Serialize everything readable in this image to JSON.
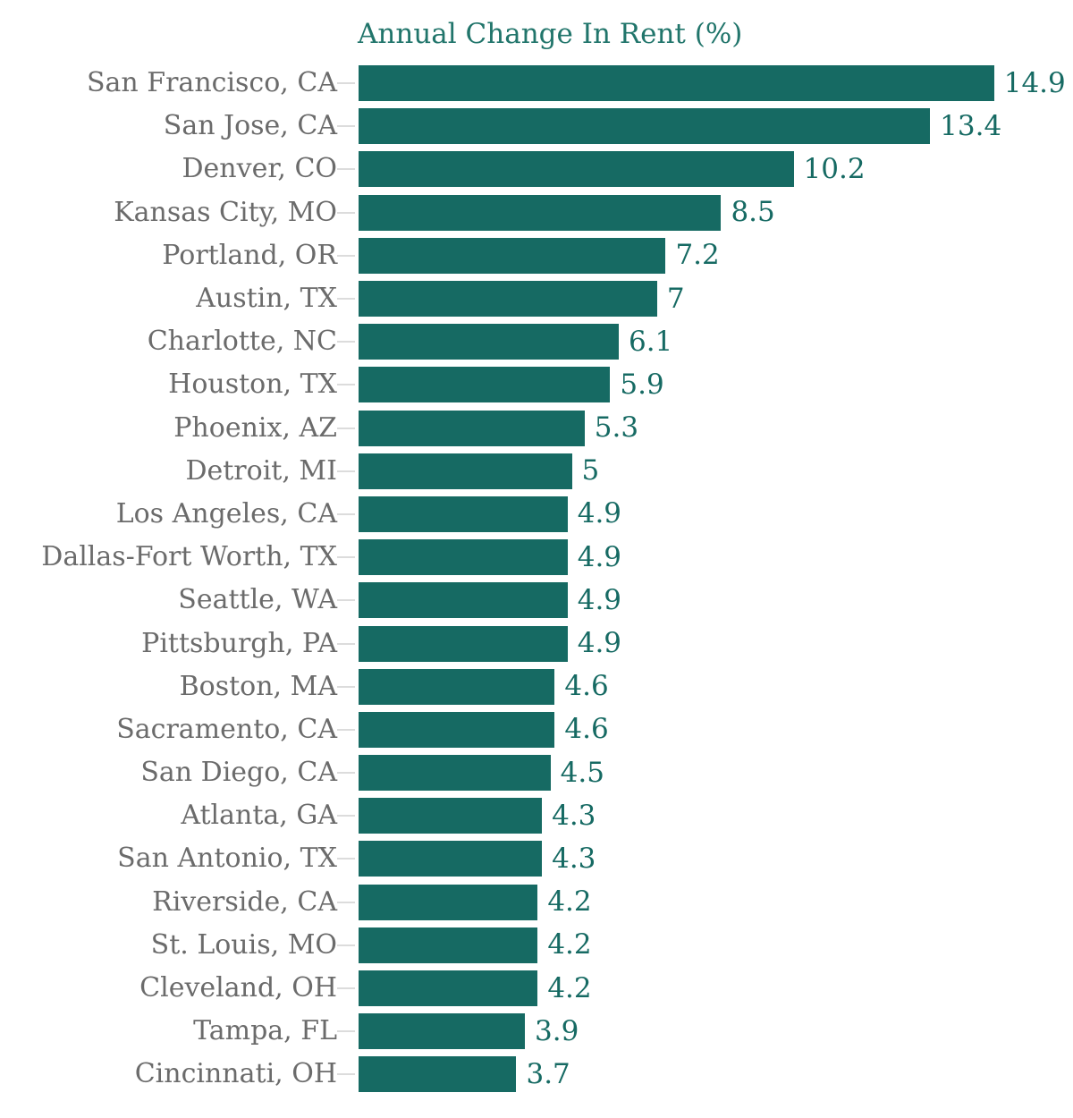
{
  "chart_data": {
    "type": "bar",
    "orientation": "horizontal",
    "title": "Annual Change In Rent (%)",
    "categories": [
      "San Francisco, CA",
      "San Jose, CA",
      "Denver, CO",
      "Kansas City, MO",
      "Portland, OR",
      "Austin, TX",
      "Charlotte, NC",
      "Houston, TX",
      "Phoenix, AZ",
      "Detroit, MI",
      "Los Angeles, CA",
      "Dallas-Fort Worth, TX",
      "Seattle, WA",
      "Pittsburgh, PA",
      "Boston, MA",
      "Sacramento, CA",
      "San Diego, CA",
      "Atlanta, GA",
      "San Antonio, TX",
      "Riverside, CA",
      "St. Louis, MO",
      "Cleveland, OH",
      "Tampa, FL",
      "Cincinnati, OH"
    ],
    "values": [
      14.9,
      13.4,
      10.2,
      8.5,
      7.2,
      7,
      6.1,
      5.9,
      5.3,
      5,
      4.9,
      4.9,
      4.9,
      4.9,
      4.6,
      4.6,
      4.5,
      4.3,
      4.3,
      4.2,
      4.2,
      4.2,
      3.9,
      3.7
    ],
    "xlim": [
      0,
      16.75
    ],
    "grid": false,
    "legend": "none",
    "value_label_position": "end-of-bar",
    "colors": {
      "bar": "#166a63",
      "value_text": "#166a63",
      "title_text": "#21756b",
      "category_text": "#6b6b6b",
      "tick": "#dcdcdc",
      "background": "#ffffff"
    }
  }
}
